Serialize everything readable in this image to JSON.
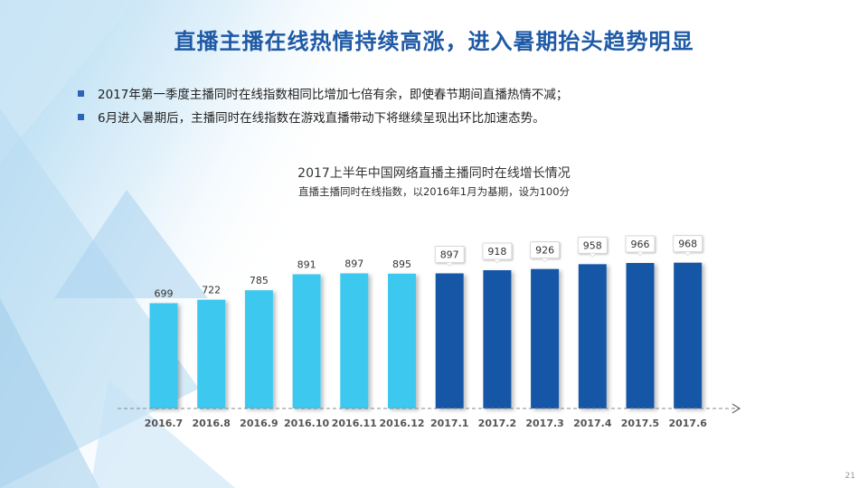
{
  "slide": {
    "title": "直播主播在线热情持续高涨，进入暑期抬头趋势明显",
    "bullets": [
      "2017年第一季度主播同时在线指数相同比增加七倍有余，即使春节期间直播热情不减；",
      "6月进入暑期后，主播同时在线指数在游戏直播带动下将继续呈现出环比加速态势。"
    ],
    "page_number": "21"
  },
  "chart_data": {
    "type": "bar",
    "title": "2017上半年中国网络直播主播同时在线增长情况",
    "subtitle": "直播主播同时在线指数，以2016年1月为基期，设为100分",
    "xlabel": "",
    "ylabel": "",
    "categories": [
      "2016.7",
      "2016.8",
      "2016.9",
      "2016.10",
      "2016.11",
      "2016.12",
      "2017.1",
      "2017.2",
      "2017.3",
      "2017.4",
      "2017.5",
      "2017.6"
    ],
    "values": [
      699,
      722,
      785,
      891,
      897,
      895,
      897,
      918,
      926,
      958,
      966,
      968
    ],
    "colors": {
      "2016": "#3ec9ef",
      "2017": "#1556a6"
    },
    "value_labels_boxed_from_index": 6,
    "ylim": [
      0,
      1200
    ],
    "grid": false,
    "legend": "none"
  }
}
